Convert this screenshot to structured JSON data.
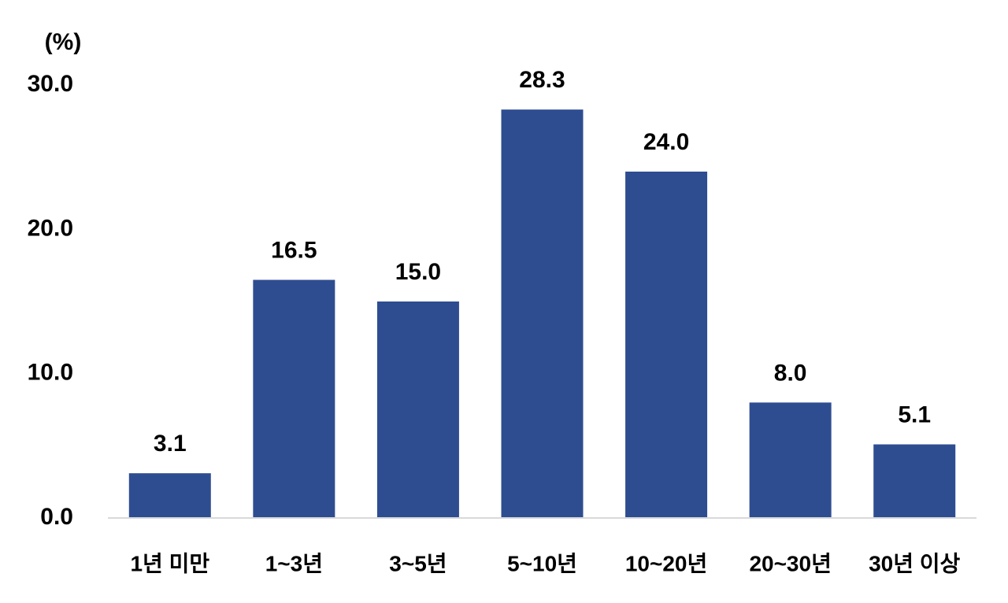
{
  "chart_data": {
    "type": "bar",
    "y_label": "(%)",
    "categories": [
      "1년 미만",
      "1~3년",
      "3~5년",
      "5~10년",
      "10~20년",
      "20~30년",
      "30년 이상"
    ],
    "values": [
      3.1,
      16.5,
      15.0,
      28.3,
      24.0,
      8.0,
      5.1
    ],
    "value_labels": [
      "3.1",
      "16.5",
      "15.0",
      "28.3",
      "24.0",
      "8.0",
      "5.1"
    ],
    "color": "#2e4d91",
    "ylim": [
      0,
      30
    ],
    "yticks": [
      {
        "value": 0,
        "label": "0.0"
      },
      {
        "value": 10,
        "label": "10.0"
      },
      {
        "value": 20,
        "label": "20.0"
      },
      {
        "value": 30,
        "label": "30.0"
      }
    ],
    "grid": false
  }
}
